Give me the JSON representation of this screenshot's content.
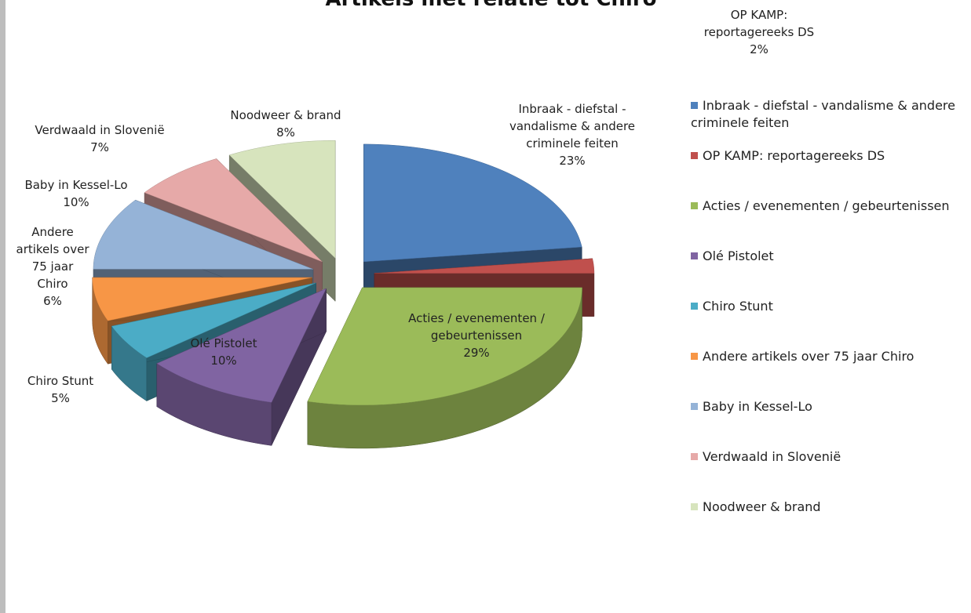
{
  "chart_data": {
    "type": "pie3d",
    "title": "Artikels met relatie tot Chiro",
    "categories": [
      "Inbraak - diefstal - vandalisme & andere criminele feiten",
      "OP KAMP: reportagereeks DS",
      "Acties / evenementen / gebeurtenissen",
      "Olé Pistolet",
      "Chiro Stunt",
      "Andere artikels over 75 jaar Chiro",
      "Baby in Kessel-Lo",
      "Verdwaald in Slovenië",
      "Noodweer & brand"
    ],
    "values": [
      23,
      2,
      29,
      10,
      5,
      6,
      10,
      7,
      8
    ],
    "value_labels": [
      "23%",
      "2%",
      "29%",
      "10%",
      "5%",
      "6%",
      "10%",
      "7%",
      "8%"
    ],
    "colors": [
      "#4f81bd",
      "#c0504d",
      "#9bbb59",
      "#8064a2",
      "#4bacc6",
      "#f79646",
      "#95b3d7",
      "#e6a9a8",
      "#d7e4bd"
    ],
    "legend": "right"
  }
}
